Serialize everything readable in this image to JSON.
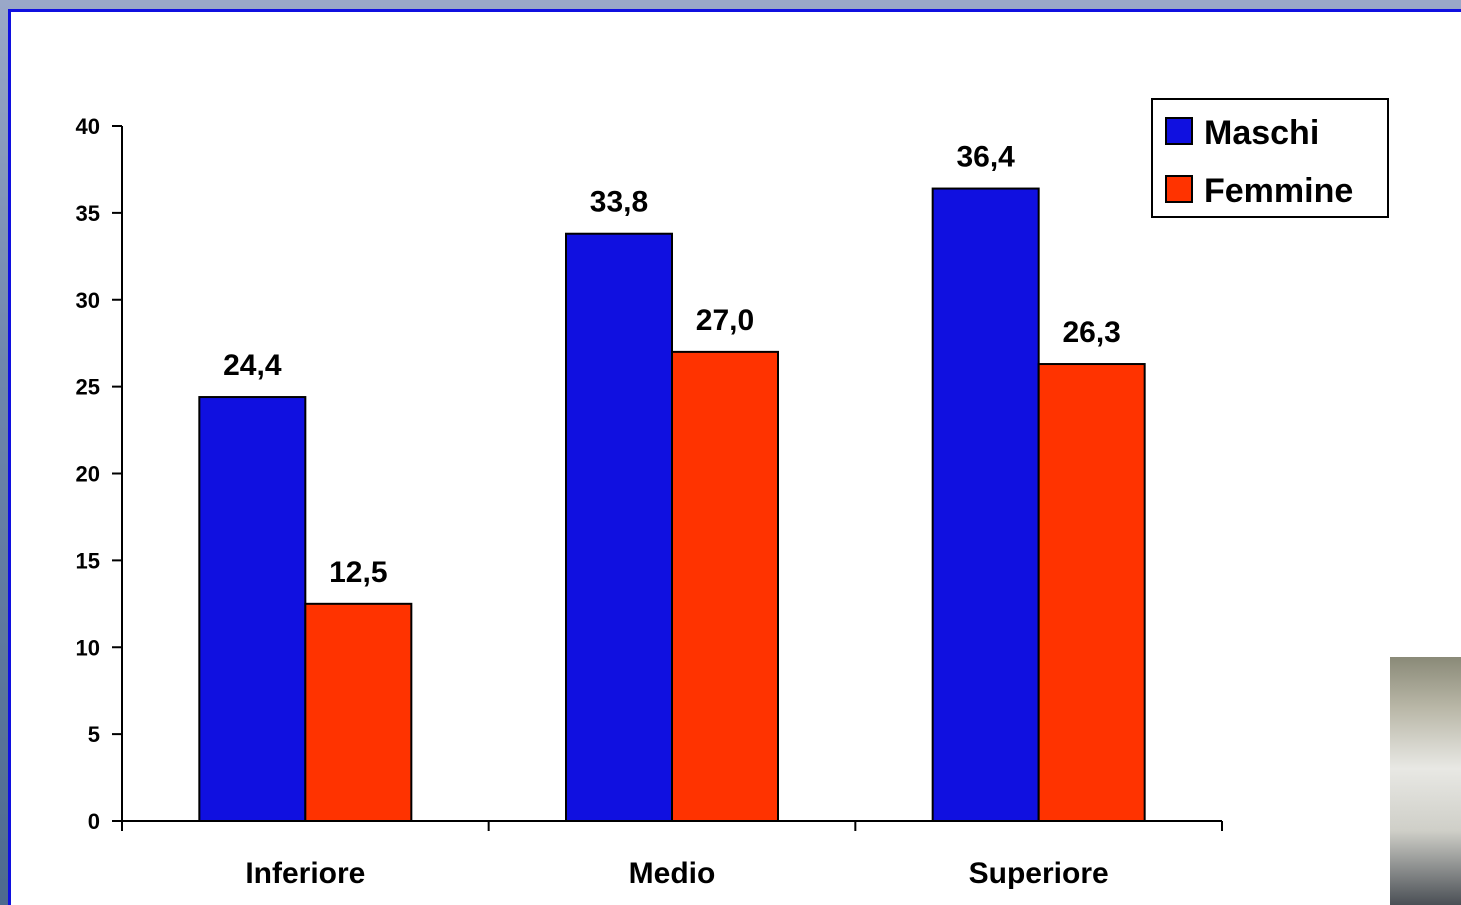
{
  "chart_data": {
    "type": "bar",
    "categories": [
      "Inferiore",
      "Medio",
      "Superiore"
    ],
    "series": [
      {
        "name": "Maschi",
        "values": [
          24.4,
          33.8,
          36.4
        ],
        "labels": [
          "24,4",
          "33,8",
          "36,4"
        ],
        "color": "#1010e0"
      },
      {
        "name": "Femmine",
        "values": [
          12.5,
          27.0,
          26.3
        ],
        "labels": [
          "12,5",
          "27,0",
          "26,3"
        ],
        "color": "#ff3300"
      }
    ],
    "yticks": [
      "0",
      "5",
      "10",
      "15",
      "20",
      "25",
      "30",
      "35",
      "40"
    ],
    "ylim": [
      0,
      40
    ],
    "grid": false,
    "legend": "top-right"
  }
}
